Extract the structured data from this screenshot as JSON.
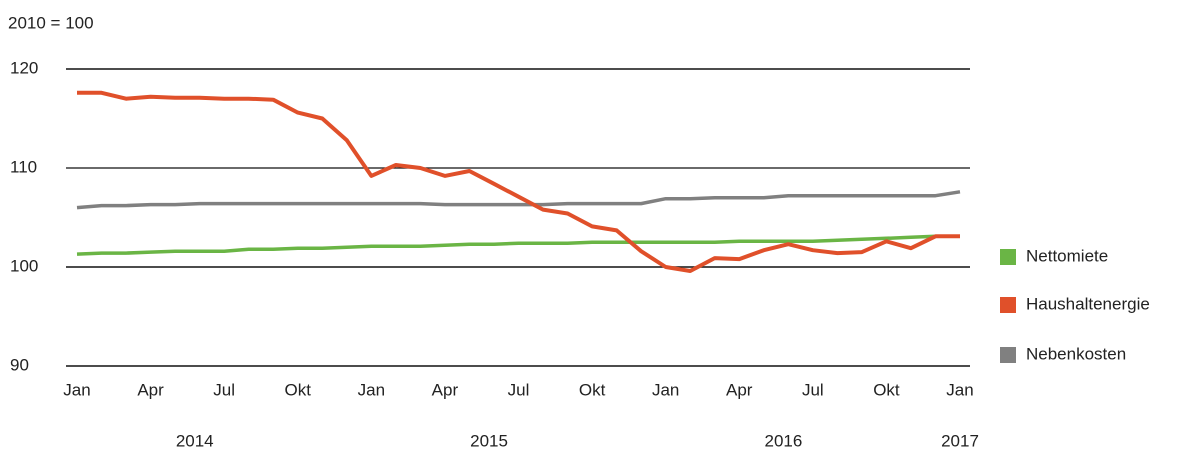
{
  "chart_data": {
    "type": "line",
    "y_label": "2010 = 100",
    "categories": [
      "Jan",
      null,
      null,
      "Apr",
      null,
      null,
      "Jul",
      null,
      null,
      "Okt",
      null,
      null,
      "Jan",
      null,
      null,
      "Apr",
      null,
      null,
      "Jul",
      null,
      null,
      "Okt",
      null,
      null,
      "Jan",
      null,
      null,
      "Apr",
      null,
      null,
      "Jul",
      null,
      null,
      "Okt",
      null,
      null,
      "Jan"
    ],
    "years": [
      "2014",
      "2015",
      "2016",
      "2017"
    ],
    "ylim": [
      90,
      120
    ],
    "yticks": [
      90,
      100,
      110,
      120
    ],
    "grid": true,
    "legend": "right",
    "series": [
      {
        "name": "Nettomiete",
        "color": "#6ab545",
        "values": [
          101.3,
          101.4,
          101.4,
          101.5,
          101.6,
          101.6,
          101.6,
          101.8,
          101.8,
          101.9,
          101.9,
          102.0,
          102.1,
          102.1,
          102.1,
          102.2,
          102.3,
          102.3,
          102.4,
          102.4,
          102.4,
          102.5,
          102.5,
          102.5,
          102.5,
          102.5,
          102.5,
          102.6,
          102.6,
          102.6,
          102.6,
          102.7,
          102.8,
          102.9,
          103.0,
          103.1,
          null
        ]
      },
      {
        "name": "Haushaltenergie",
        "color": "#e0502a",
        "values": [
          117.6,
          117.6,
          117.0,
          117.2,
          117.1,
          117.1,
          117.0,
          117.0,
          116.9,
          115.6,
          115.0,
          112.8,
          109.2,
          110.3,
          110.0,
          109.2,
          109.7,
          108.4,
          107.1,
          105.8,
          105.4,
          104.1,
          103.7,
          101.6,
          100.0,
          99.6,
          100.9,
          100.8,
          101.7,
          102.3,
          101.7,
          101.4,
          101.5,
          102.6,
          101.9,
          103.1,
          103.1
        ]
      },
      {
        "name": "Nebenkosten",
        "color": "#808080",
        "values": [
          106.0,
          106.2,
          106.2,
          106.3,
          106.3,
          106.4,
          106.4,
          106.4,
          106.4,
          106.4,
          106.4,
          106.4,
          106.4,
          106.4,
          106.4,
          106.3,
          106.3,
          106.3,
          106.3,
          106.3,
          106.4,
          106.4,
          106.4,
          106.4,
          106.9,
          106.9,
          107.0,
          107.0,
          107.0,
          107.2,
          107.2,
          107.2,
          107.2,
          107.2,
          107.2,
          107.2,
          107.6
        ]
      }
    ]
  }
}
